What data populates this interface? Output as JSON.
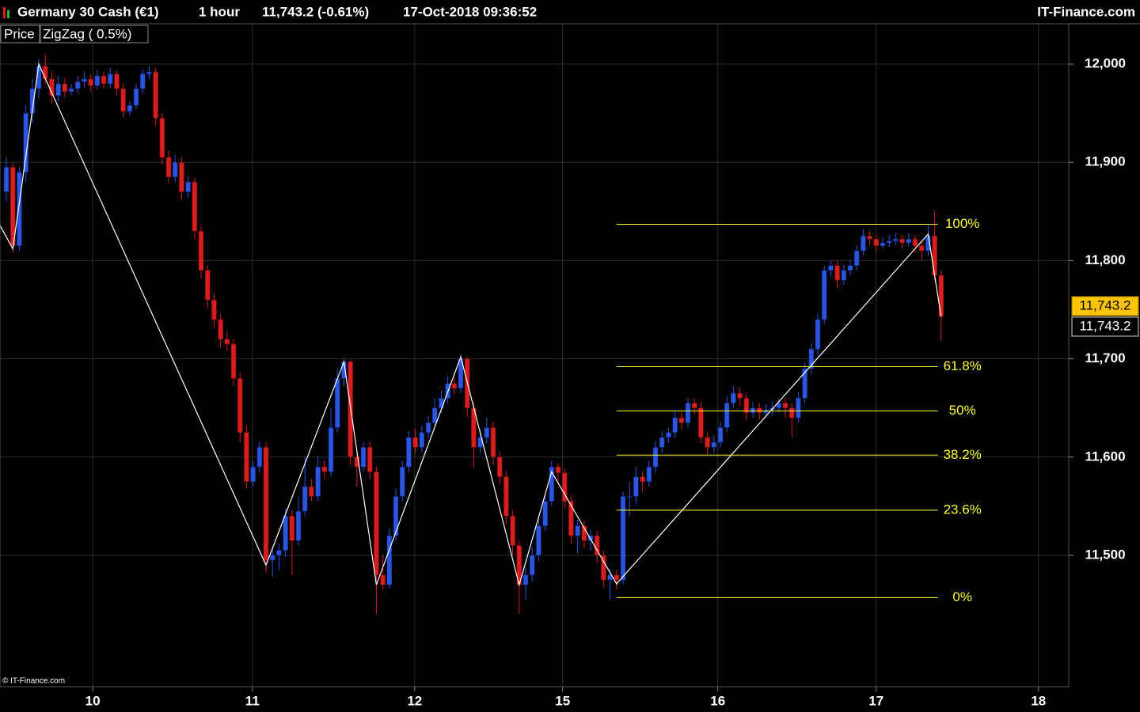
{
  "header": {
    "instrument": "Germany 30 Cash (€1)",
    "timeframe": "1 hour",
    "quote": "11,743.2 (-0.61%)",
    "datetime": "17-Oct-2018 09:36:52",
    "brand": "IT-Finance.com"
  },
  "indicators": [
    "Price",
    "ZigZag ( 0.5%)"
  ],
  "copyright": "© IT-Finance.com",
  "chart_data": {
    "type": "candlestick",
    "up_color": "#2a56e0",
    "down_color": "#d81e1e",
    "ohlc": [
      [
        11870,
        11905,
        11860,
        11895
      ],
      [
        11895,
        11900,
        11808,
        11815
      ],
      [
        11815,
        11895,
        11810,
        11890
      ],
      [
        11890,
        11958,
        11880,
        11950
      ],
      [
        11950,
        11985,
        11940,
        11975
      ],
      [
        11975,
        12005,
        11965,
        11998
      ],
      [
        11998,
        12010,
        11980,
        11985
      ],
      [
        11985,
        11992,
        11960,
        11968
      ],
      [
        11968,
        11988,
        11962,
        11980
      ],
      [
        11980,
        11986,
        11966,
        11972
      ],
      [
        11972,
        11980,
        11968,
        11975
      ],
      [
        11975,
        11988,
        11970,
        11982
      ],
      [
        11982,
        11992,
        11976,
        11985
      ],
      [
        11985,
        11990,
        11972,
        11978
      ],
      [
        11978,
        11994,
        11974,
        11988
      ],
      [
        11988,
        11992,
        11975,
        11980
      ],
      [
        11980,
        11996,
        11976,
        11990
      ],
      [
        11990,
        11994,
        11968,
        11975
      ],
      [
        11975,
        11980,
        11946,
        11952
      ],
      [
        11952,
        11962,
        11948,
        11958
      ],
      [
        11958,
        11980,
        11954,
        11975
      ],
      [
        11975,
        11995,
        11970,
        11990
      ],
      [
        11990,
        11998,
        11984,
        11992
      ],
      [
        11992,
        11996,
        11938,
        11945
      ],
      [
        11945,
        11950,
        11898,
        11905
      ],
      [
        11905,
        11912,
        11878,
        11885
      ],
      [
        11885,
        11908,
        11880,
        11900
      ],
      [
        11900,
        11905,
        11862,
        11870
      ],
      [
        11870,
        11886,
        11864,
        11880
      ],
      [
        11880,
        11884,
        11822,
        11830
      ],
      [
        11830,
        11836,
        11782,
        11790
      ],
      [
        11790,
        11795,
        11752,
        11760
      ],
      [
        11760,
        11766,
        11732,
        11740
      ],
      [
        11740,
        11746,
        11712,
        11720
      ],
      [
        11720,
        11728,
        11708,
        11715
      ],
      [
        11715,
        11720,
        11672,
        11680
      ],
      [
        11680,
        11686,
        11615,
        11625
      ],
      [
        11625,
        11632,
        11568,
        11575
      ],
      [
        11575,
        11596,
        11570,
        11590
      ],
      [
        11590,
        11616,
        11584,
        11610
      ],
      [
        11610,
        11615,
        11482,
        11495
      ],
      [
        11495,
        11508,
        11478,
        11500
      ],
      [
        11500,
        11512,
        11485,
        11505
      ],
      [
        11505,
        11548,
        11498,
        11540
      ],
      [
        11540,
        11546,
        11480,
        11515
      ],
      [
        11515,
        11560,
        11510,
        11545
      ],
      [
        11545,
        11600,
        11540,
        11570
      ],
      [
        11570,
        11578,
        11555,
        11560
      ],
      [
        11560,
        11600,
        11555,
        11590
      ],
      [
        11590,
        11596,
        11578,
        11585
      ],
      [
        11585,
        11650,
        11580,
        11630
      ],
      [
        11630,
        11690,
        11625,
        11680
      ],
      [
        11680,
        11700,
        11672,
        11697
      ],
      [
        11697,
        11699,
        11592,
        11600
      ],
      [
        11600,
        11606,
        11570,
        11590
      ],
      [
        11590,
        11615,
        11585,
        11610
      ],
      [
        11610,
        11616,
        11578,
        11585
      ],
      [
        11585,
        11590,
        11440,
        11480
      ],
      [
        11480,
        11500,
        11465,
        11470
      ],
      [
        11470,
        11528,
        11466,
        11520
      ],
      [
        11520,
        11568,
        11515,
        11560
      ],
      [
        11560,
        11596,
        11555,
        11590
      ],
      [
        11590,
        11626,
        11585,
        11620
      ],
      [
        11620,
        11628,
        11604,
        11610
      ],
      [
        11610,
        11632,
        11605,
        11625
      ],
      [
        11625,
        11642,
        11620,
        11635
      ],
      [
        11635,
        11660,
        11630,
        11650
      ],
      [
        11650,
        11668,
        11645,
        11660
      ],
      [
        11660,
        11682,
        11655,
        11675
      ],
      [
        11675,
        11680,
        11664,
        11670
      ],
      [
        11670,
        11705,
        11665,
        11700
      ],
      [
        11700,
        11702,
        11642,
        11650
      ],
      [
        11650,
        11656,
        11590,
        11610
      ],
      [
        11610,
        11628,
        11604,
        11620
      ],
      [
        11620,
        11640,
        11614,
        11630
      ],
      [
        11630,
        11636,
        11592,
        11600
      ],
      [
        11600,
        11606,
        11572,
        11580
      ],
      [
        11580,
        11586,
        11532,
        11540
      ],
      [
        11540,
        11546,
        11500,
        11510
      ],
      [
        11510,
        11515,
        11440,
        11470
      ],
      [
        11470,
        11488,
        11455,
        11480
      ],
      [
        11480,
        11508,
        11474,
        11500
      ],
      [
        11500,
        11538,
        11494,
        11530
      ],
      [
        11530,
        11562,
        11525,
        11555
      ],
      [
        11555,
        11596,
        11550,
        11590
      ],
      [
        11590,
        11594,
        11576,
        11584
      ],
      [
        11584,
        11588,
        11548,
        11555
      ],
      [
        11555,
        11560,
        11512,
        11520
      ],
      [
        11520,
        11536,
        11502,
        11530
      ],
      [
        11530,
        11535,
        11508,
        11515
      ],
      [
        11515,
        11526,
        11505,
        11520
      ],
      [
        11520,
        11525,
        11492,
        11500
      ],
      [
        11500,
        11505,
        11468,
        11475
      ],
      [
        11475,
        11486,
        11455,
        11480
      ],
      [
        11480,
        11485,
        11465,
        11475
      ],
      [
        11475,
        11565,
        11470,
        11560
      ],
      [
        11560,
        11575,
        11540,
        11560
      ],
      [
        11560,
        11590,
        11552,
        11580
      ],
      [
        11580,
        11585,
        11565,
        11575
      ],
      [
        11575,
        11596,
        11570,
        11590
      ],
      [
        11590,
        11616,
        11584,
        11610
      ],
      [
        11610,
        11626,
        11604,
        11620
      ],
      [
        11620,
        11630,
        11614,
        11625
      ],
      [
        11625,
        11646,
        11620,
        11640
      ],
      [
        11640,
        11645,
        11628,
        11635
      ],
      [
        11635,
        11660,
        11630,
        11655
      ],
      [
        11655,
        11660,
        11644,
        11650
      ],
      [
        11650,
        11656,
        11614,
        11620
      ],
      [
        11620,
        11625,
        11602,
        11610
      ],
      [
        11610,
        11622,
        11604,
        11615
      ],
      [
        11615,
        11636,
        11610,
        11630
      ],
      [
        11630,
        11662,
        11625,
        11655
      ],
      [
        11655,
        11672,
        11650,
        11665
      ],
      [
        11665,
        11670,
        11652,
        11660
      ],
      [
        11660,
        11664,
        11638,
        11645
      ],
      [
        11645,
        11656,
        11640,
        11650
      ],
      [
        11650,
        11655,
        11638,
        11645
      ],
      [
        11645,
        11654,
        11640,
        11648
      ],
      [
        11648,
        11656,
        11642,
        11650
      ],
      [
        11650,
        11660,
        11645,
        11655
      ],
      [
        11655,
        11660,
        11640,
        11650
      ],
      [
        11650,
        11655,
        11620,
        11640
      ],
      [
        11640,
        11666,
        11635,
        11660
      ],
      [
        11660,
        11696,
        11655,
        11690
      ],
      [
        11690,
        11716,
        11684,
        11710
      ],
      [
        11710,
        11746,
        11704,
        11740
      ],
      [
        11740,
        11795,
        11735,
        11790
      ],
      [
        11790,
        11800,
        11784,
        11795
      ],
      [
        11795,
        11800,
        11772,
        11780
      ],
      [
        11780,
        11796,
        11775,
        11790
      ],
      [
        11790,
        11800,
        11785,
        11795
      ],
      [
        11795,
        11816,
        11790,
        11810
      ],
      [
        11810,
        11832,
        11805,
        11825
      ],
      [
        11825,
        11830,
        11816,
        11822
      ],
      [
        11822,
        11826,
        11810,
        11815
      ],
      [
        11815,
        11824,
        11812,
        11818
      ],
      [
        11818,
        11826,
        11814,
        11820
      ],
      [
        11820,
        11828,
        11816,
        11822
      ],
      [
        11822,
        11826,
        11812,
        11818
      ],
      [
        11818,
        11828,
        11814,
        11822
      ],
      [
        11822,
        11826,
        11808,
        11815
      ],
      [
        11815,
        11820,
        11800,
        11810
      ],
      [
        11810,
        11836,
        11805,
        11825
      ],
      [
        11825,
        11850,
        11780,
        11785
      ],
      [
        11785,
        11790,
        11718,
        11743
      ]
    ],
    "zigzag": {
      "color": "#ffffff",
      "x": [
        -1,
        1,
        5,
        40,
        52,
        57,
        70,
        79,
        84,
        94,
        142,
        144
      ],
      "values": [
        11836,
        11812,
        12000,
        11490,
        11697,
        11470,
        11702,
        11470,
        11585,
        11471,
        11827,
        11743
      ]
    },
    "fib": {
      "color": "#ffff33",
      "x": [
        94,
        143.5
      ],
      "levels": [
        {
          "label": "100%",
          "price": 11837
        },
        {
          "label": "61.8%",
          "price": 11692
        },
        {
          "label": "50%",
          "price": 11647
        },
        {
          "label": "38.2%",
          "price": 11602
        },
        {
          "label": "23.6%",
          "price": 11546
        },
        {
          "label": "0%",
          "price": 11457
        }
      ]
    },
    "last_price": {
      "value": 11743.2,
      "label": "11,743.2"
    },
    "xlim": [
      -0.98,
      163.66
    ],
    "ylim": [
      11366.3,
      12041.1
    ],
    "xticks": [
      {
        "value": 13.3,
        "label": "10"
      },
      {
        "value": 37.9,
        "label": "11"
      },
      {
        "value": 62.9,
        "label": "12"
      },
      {
        "value": 85.7,
        "label": "15"
      },
      {
        "value": 109.6,
        "label": "16"
      },
      {
        "value": 134,
        "label": "17"
      },
      {
        "value": 159,
        "label": "18"
      }
    ],
    "yticks": [
      {
        "value": 11500,
        "label": "11,500"
      },
      {
        "value": 11600,
        "label": "11,600"
      },
      {
        "value": 11700,
        "label": "11,700"
      },
      {
        "value": 11800,
        "label": "11,800"
      },
      {
        "value": 11900,
        "label": "11,900"
      },
      {
        "value": 12000,
        "label": "12,000"
      }
    ],
    "grid": true
  }
}
